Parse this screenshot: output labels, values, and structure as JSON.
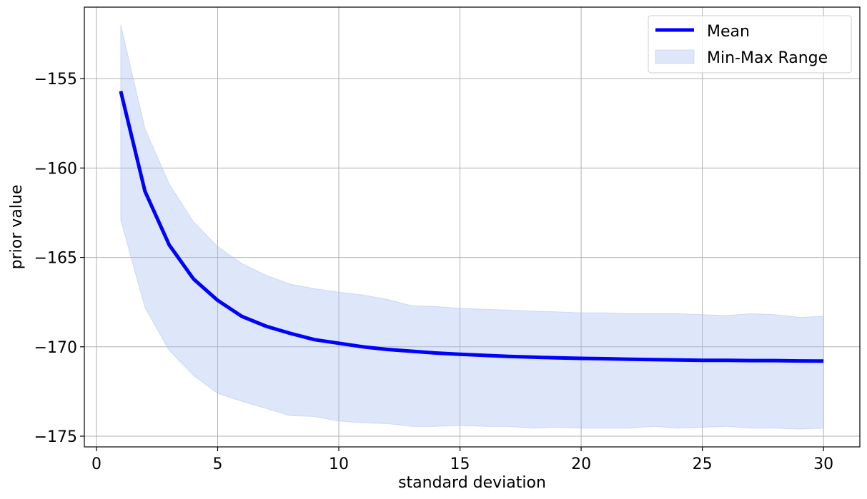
{
  "chart_data": {
    "type": "line",
    "title": "",
    "xlabel": "standard deviation",
    "ylabel": "prior value",
    "xlim": [
      -0.5,
      31.5
    ],
    "ylim": [
      -175.6,
      -151.0
    ],
    "xticks": [
      0,
      5,
      10,
      15,
      20,
      25,
      30
    ],
    "yticks": [
      -155,
      -160,
      -165,
      -170,
      -175
    ],
    "ytick_labels": [
      "−155",
      "−160",
      "−165",
      "−170",
      "−175"
    ],
    "grid": true,
    "legend_position": "top-right",
    "x": [
      1,
      2,
      3,
      4,
      5,
      6,
      7,
      8,
      9,
      10,
      11,
      12,
      13,
      14,
      15,
      16,
      17,
      18,
      19,
      20,
      21,
      22,
      23,
      24,
      25,
      26,
      27,
      28,
      29,
      30
    ],
    "series": [
      {
        "name": "Mean",
        "kind": "line",
        "color": "#0000ff",
        "values": [
          -155.7,
          -161.3,
          -164.3,
          -166.2,
          -167.4,
          -168.3,
          -168.85,
          -169.25,
          -169.6,
          -169.8,
          -170.0,
          -170.15,
          -170.25,
          -170.35,
          -170.42,
          -170.48,
          -170.54,
          -170.58,
          -170.62,
          -170.65,
          -170.67,
          -170.7,
          -170.72,
          -170.74,
          -170.76,
          -170.76,
          -170.77,
          -170.77,
          -170.79,
          -170.8
        ]
      },
      {
        "name": "Min-Max Range",
        "kind": "band",
        "color": "#a9c1f0",
        "upper": [
          -152.0,
          -157.8,
          -160.9,
          -163.0,
          -164.4,
          -165.35,
          -166.0,
          -166.5,
          -166.75,
          -166.95,
          -167.1,
          -167.35,
          -167.7,
          -167.75,
          -167.85,
          -167.9,
          -167.95,
          -168.0,
          -168.05,
          -168.1,
          -168.1,
          -168.15,
          -168.15,
          -168.15,
          -168.2,
          -168.25,
          -168.15,
          -168.2,
          -168.35,
          -168.3
        ],
        "lower": [
          -162.9,
          -167.8,
          -170.2,
          -171.6,
          -172.6,
          -173.05,
          -173.45,
          -173.85,
          -173.9,
          -174.15,
          -174.25,
          -174.3,
          -174.45,
          -174.45,
          -174.4,
          -174.45,
          -174.45,
          -174.55,
          -174.5,
          -174.55,
          -174.55,
          -174.55,
          -174.45,
          -174.55,
          -174.5,
          -174.45,
          -174.55,
          -174.55,
          -174.6,
          -174.55
        ]
      }
    ]
  }
}
